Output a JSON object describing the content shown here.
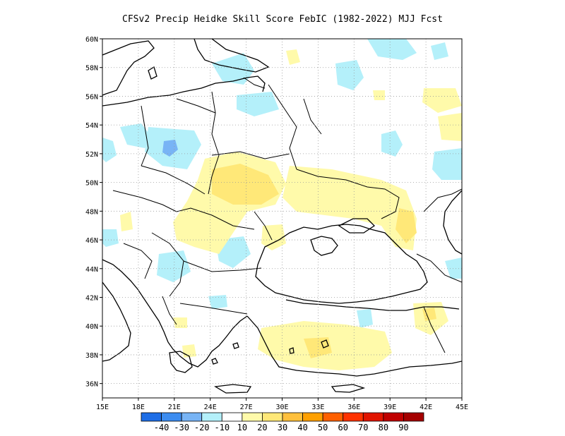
{
  "title": "CFSv2 Precip Heidke Skill Score FebIC (1982-2022) MJJ Fcst",
  "map": {
    "lon_range": [
      15,
      45
    ],
    "lat_range": [
      35,
      60
    ],
    "x_ticks": [
      "15E",
      "18E",
      "21E",
      "24E",
      "27E",
      "30E",
      "33E",
      "36E",
      "39E",
      "42E",
      "45E"
    ],
    "y_ticks": [
      "36N",
      "38N",
      "40N",
      "42N",
      "44N",
      "46N",
      "48N",
      "50N",
      "52N",
      "54N",
      "56N",
      "58N",
      "60N"
    ],
    "grid": true
  },
  "colorbar": {
    "labels": [
      "-40",
      "-30",
      "-20",
      "-10",
      "10",
      "20",
      "30",
      "40",
      "50",
      "60",
      "70",
      "80",
      "90"
    ],
    "colors": [
      "#1e6ee6",
      "#3c8cf0",
      "#78b4f5",
      "#b4f0fa",
      "#ffffff",
      "#fffaaa",
      "#ffe878",
      "#ffc03c",
      "#ffa000",
      "#ff6000",
      "#ff3200",
      "#e11400",
      "#c00000",
      "#a50000"
    ]
  }
}
